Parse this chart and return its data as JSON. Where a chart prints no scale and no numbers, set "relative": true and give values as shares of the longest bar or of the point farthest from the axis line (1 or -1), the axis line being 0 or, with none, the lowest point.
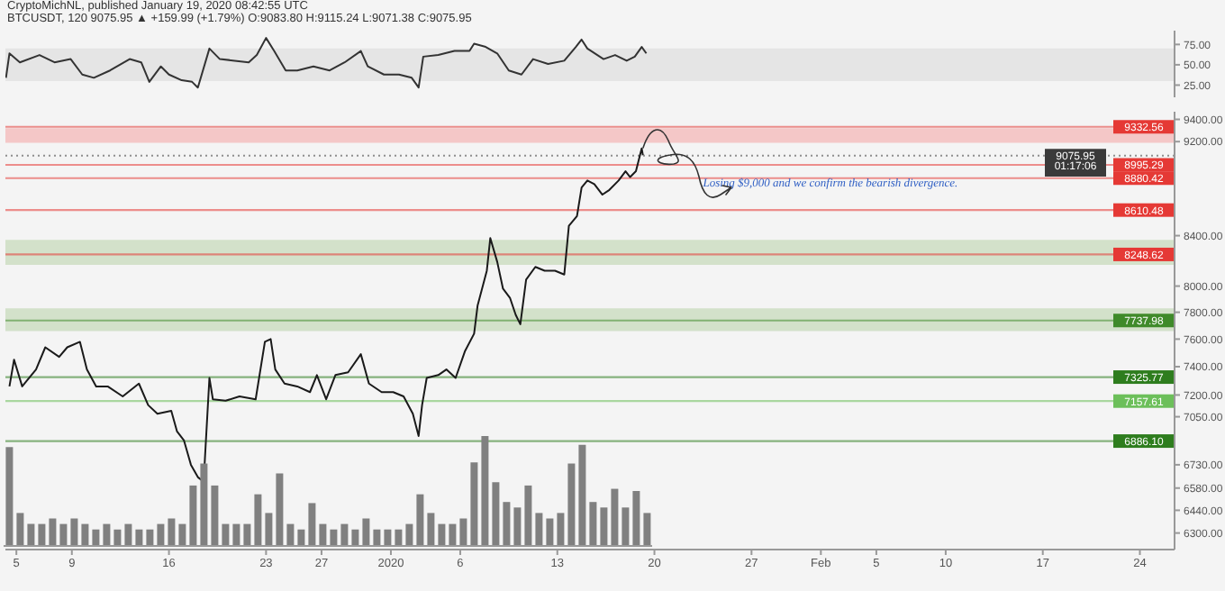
{
  "chart_data": [
    {
      "type": "line",
      "title": "CryptoMichNL, published January 19, 2020 08:42:55 UTC",
      "subtitle": "BTCUSDT, 120 9075.95 ▲ +159.99 (+1.79%) O:9083.80 H:9115.24 L:9071.38 C:9075.95",
      "tick_labels": "y",
      "xlim": [
        "2019-12-04T05:00",
        "2020-02-26T12:00"
      ],
      "ylim": [
        10,
        92
      ],
      "yticks": [
        {
          "value": 25,
          "label": "25.00"
        },
        {
          "value": 50,
          "label": "50.00"
        },
        {
          "value": 75,
          "label": "75.00"
        }
      ],
      "bands": [
        {
          "axis": "y",
          "from": 30,
          "to": 70,
          "color": "#dedede"
        }
      ],
      "series": [
        {
          "color": "#333333",
          "x": [
            "2019-12-04T06:00",
            "2019-12-04T12:00",
            "2019-12-05T06:00",
            "2019-12-06T16:00",
            "2019-12-07T18:00",
            "2019-12-08T22:00",
            "2019-12-09T18:00",
            "2019-12-10T14:00",
            "2019-12-11T18:00",
            "2019-12-13T04:00",
            "2019-12-14T00:00",
            "2019-12-14T14:00",
            "2019-12-15T10:00",
            "2019-12-16T00:00",
            "2019-12-16T22:00",
            "2019-12-17T16:00",
            "2019-12-18T02:00",
            "2019-12-18T22:00",
            "2019-12-19T16:00",
            "2019-12-20T18:00",
            "2019-12-21T18:00",
            "2019-12-22T08:00",
            "2019-12-23T00:00",
            "2019-12-23T14:00",
            "2019-12-24T10:00",
            "2019-12-25T06:00",
            "2019-12-26T10:00",
            "2019-12-27T14:00",
            "2019-12-28T16:00",
            "2019-12-29T20:00",
            "2019-12-30T08:00",
            "2019-12-31T12:00",
            "2020-01-01T14:00",
            "2020-01-02T12:00",
            "2020-01-03T00:00",
            "2020-01-03T08:00",
            "2020-01-04T10:00",
            "2020-01-05T14:00",
            "2020-01-06T16:00",
            "2020-01-07T00:00",
            "2020-01-07T20:00",
            "2020-01-08T16:00",
            "2020-01-09T12:00",
            "2020-01-10T10:00",
            "2020-01-11T06:00",
            "2020-01-12T08:00",
            "2020-01-13T12:00",
            "2020-01-14T08:00",
            "2020-01-14T18:00",
            "2020-01-15T04:00",
            "2020-01-16T08:00",
            "2020-01-17T04:00",
            "2020-01-18T00:00",
            "2020-01-18T14:00",
            "2020-01-19T02:00",
            "2020-01-19T10:00"
          ],
          "values": [
            34,
            64,
            53,
            62,
            53,
            57,
            38,
            34,
            43,
            57,
            53,
            29,
            48,
            38,
            31,
            29,
            22,
            70,
            57,
            55,
            53,
            62,
            83,
            67,
            43,
            43,
            48,
            43,
            53,
            67,
            48,
            38,
            38,
            34,
            22,
            60,
            62,
            67,
            67,
            76,
            72,
            64,
            43,
            38,
            57,
            51,
            55,
            72,
            81,
            70,
            57,
            62,
            55,
            60,
            72,
            64
          ]
        }
      ]
    },
    {
      "type": "line",
      "xlim": [
        "2019-12-04T05:00",
        "2020-02-26T12:00"
      ],
      "xticks": [
        {
          "value": "2019-12-05",
          "label": "5"
        },
        {
          "value": "2019-12-09",
          "label": "9"
        },
        {
          "value": "2019-12-16",
          "label": "16"
        },
        {
          "value": "2019-12-23",
          "label": "23"
        },
        {
          "value": "2019-12-27",
          "label": "27"
        },
        {
          "value": "2020-01-01",
          "label": "2020"
        },
        {
          "value": "2020-01-06",
          "label": "6"
        },
        {
          "value": "2020-01-13",
          "label": "13"
        },
        {
          "value": "2020-01-20",
          "label": "20"
        },
        {
          "value": "2020-01-27",
          "label": "27"
        },
        {
          "value": "2020-02-01",
          "label": "Feb"
        },
        {
          "value": "2020-02-05",
          "label": "5"
        },
        {
          "value": "2020-02-10",
          "label": "10"
        },
        {
          "value": "2020-02-17",
          "label": "17"
        },
        {
          "value": "2020-02-24",
          "label": "24"
        }
      ],
      "log": "y",
      "ylim": [
        6200,
        9470
      ],
      "yticks": [
        {
          "value": 9400,
          "label": "9400.00"
        },
        {
          "value": 9200,
          "label": "9200.00"
        },
        {
          "value": 8400,
          "label": "8400.00"
        },
        {
          "value": 8000,
          "label": "8000.00"
        },
        {
          "value": 7800,
          "label": "7800.00"
        },
        {
          "value": 7600,
          "label": "7600.00"
        },
        {
          "value": 7400,
          "label": "7400.00"
        },
        {
          "value": 7200,
          "label": "7200.00"
        },
        {
          "value": 7050,
          "label": "7050.00"
        },
        {
          "value": 6730,
          "label": "6730.00"
        },
        {
          "value": 6580,
          "label": "6580.00"
        },
        {
          "value": 6440,
          "label": "6440.00"
        },
        {
          "value": 6300,
          "label": "6300.00"
        }
      ],
      "ref_lines": [
        {
          "axis": "y",
          "value": 9332.56,
          "label": "9332.56",
          "color": "#e53935"
        },
        {
          "axis": "y",
          "value": 9075.95,
          "label": "9075.95",
          "color": "#3a3a3a",
          "line_style": "dotted"
        },
        {
          "axis": "y",
          "value": 8995.29,
          "label": "8995.29",
          "color": "#e53935"
        },
        {
          "axis": "y",
          "value": 8880.42,
          "label": "8880.42",
          "color": "#e53935"
        },
        {
          "axis": "y",
          "value": 8610.48,
          "label": "8610.48",
          "color": "#e53935"
        },
        {
          "axis": "y",
          "value": 8248.62,
          "label": "8248.62",
          "color": "#e53935"
        },
        {
          "axis": "y",
          "value": 7737.98,
          "label": "7737.98",
          "color": "#3f8a2a"
        },
        {
          "axis": "y",
          "value": 7325.77,
          "label": "7325.77",
          "color": "#2e7d1e"
        },
        {
          "axis": "y",
          "value": 7157.61,
          "label": "7157.61",
          "color": "#6cbf5a"
        },
        {
          "axis": "y",
          "value": 6886.1,
          "label": "6886.10",
          "color": "#2e7d1e"
        }
      ],
      "annotations": [
        {
          "text": "Losing $9,000 and we confirm the bearish divergence.",
          "x": "2020-01-23T12:00",
          "y": 8840
        },
        "01:17:06"
      ],
      "bands": [
        {
          "axis": "y",
          "from": 9190,
          "to": 9320,
          "color": "#f4b4b4"
        },
        {
          "axis": "y",
          "from": 8165,
          "to": 8365,
          "color": "#c5d9b8"
        },
        {
          "axis": "y",
          "from": 7660,
          "to": 7830,
          "color": "#c5d9b8"
        }
      ],
      "series": [
        {
          "color": "#1a1a1a",
          "x": [
            "2019-12-04T12:00",
            "2019-12-04T20:00",
            "2019-12-05T10:00",
            "2019-12-06T10:00",
            "2019-12-07T02:00",
            "2019-12-08T02:00",
            "2019-12-08T16:00",
            "2019-12-09T14:00",
            "2019-12-10T02:00",
            "2019-12-10T18:00",
            "2019-12-11T14:00",
            "2019-12-12T16:00",
            "2019-12-13T20:00",
            "2019-12-14T12:00",
            "2019-12-15T04:00",
            "2019-12-16T04:00",
            "2019-12-16T14:00",
            "2019-12-17T02:00",
            "2019-12-17T14:00",
            "2019-12-18T02:00",
            "2019-12-18T12:00",
            "2019-12-18T22:00",
            "2019-12-19T04:00",
            "2019-12-20T02:00",
            "2019-12-21T02:00",
            "2019-12-22T06:00",
            "2019-12-22T22:00",
            "2019-12-23T08:00",
            "2019-12-23T16:00",
            "2019-12-24T08:00",
            "2019-12-25T06:00",
            "2019-12-26T04:00",
            "2019-12-26T16:00",
            "2019-12-27T08:00",
            "2019-12-28T00:00",
            "2019-12-28T22:00",
            "2019-12-29T20:00",
            "2019-12-30T10:00",
            "2019-12-31T08:00",
            "2020-01-01T04:00",
            "2020-01-01T22:00",
            "2020-01-02T14:00",
            "2020-01-03T00:00",
            "2020-01-03T06:00",
            "2020-01-03T14:00",
            "2020-01-04T10:00",
            "2020-01-05T00:00",
            "2020-01-05T16:00",
            "2020-01-06T08:00",
            "2020-01-07T00:00",
            "2020-01-07T06:00",
            "2020-01-07T22:00",
            "2020-01-08T04:00",
            "2020-01-08T16:00",
            "2020-01-09T02:00",
            "2020-01-09T14:00",
            "2020-01-10T00:00",
            "2020-01-10T08:00",
            "2020-01-10T18:00",
            "2020-01-11T10:00",
            "2020-01-12T02:00",
            "2020-01-12T20:00",
            "2020-01-13T12:00",
            "2020-01-13T20:00",
            "2020-01-14T10:00",
            "2020-01-14T18:00",
            "2020-01-15T04:00",
            "2020-01-15T16:00",
            "2020-01-16T06:00",
            "2020-01-16T18:00",
            "2020-01-17T10:00",
            "2020-01-17T22:00",
            "2020-01-18T06:00",
            "2020-01-18T16:00",
            "2020-01-19T02:00",
            "2020-01-19T04:00"
          ],
          "values": [
            7260,
            7450,
            7260,
            7380,
            7540,
            7470,
            7540,
            7580,
            7380,
            7260,
            7260,
            7190,
            7280,
            7130,
            7070,
            7090,
            6950,
            6890,
            6730,
            6650,
            6620,
            7320,
            7170,
            7160,
            7190,
            7170,
            7580,
            7600,
            7380,
            7280,
            7260,
            7220,
            7340,
            7170,
            7340,
            7360,
            7490,
            7280,
            7220,
            7220,
            7190,
            7070,
            6920,
            7130,
            7320,
            7340,
            7380,
            7320,
            7510,
            7640,
            7850,
            8120,
            8380,
            8190,
            7980,
            7910,
            7780,
            7710,
            8050,
            8150,
            8120,
            8120,
            8090,
            8480,
            8560,
            8800,
            8860,
            8830,
            8740,
            8780,
            8860,
            8940,
            8890,
            8940,
            9140,
            9080
          ]
        }
      ]
    },
    {
      "type": "bar",
      "relative": true,
      "tick_labels": false,
      "color": "#808080",
      "categories": [
        null,
        null,
        null,
        null,
        null,
        null,
        null,
        null,
        null,
        null,
        null,
        null,
        null,
        null,
        null,
        null,
        null,
        null,
        null,
        null,
        null,
        null,
        null,
        null,
        null,
        null,
        null,
        null,
        null,
        null,
        null,
        null,
        null,
        null,
        null,
        null,
        null,
        null,
        null,
        null,
        null,
        null,
        null,
        null,
        null,
        null,
        null,
        null,
        null,
        null,
        null,
        null,
        null,
        null,
        null,
        null,
        null,
        null,
        null,
        null
      ],
      "values": [
        0.9,
        0.3,
        0.2,
        0.2,
        0.25,
        0.2,
        0.25,
        0.2,
        0.15,
        0.2,
        0.15,
        0.2,
        0.15,
        0.15,
        0.2,
        0.25,
        0.2,
        0.55,
        0.75,
        0.55,
        0.2,
        0.2,
        0.2,
        0.47,
        0.3,
        0.66,
        0.2,
        0.15,
        0.39,
        0.2,
        0.15,
        0.2,
        0.15,
        0.25,
        0.15,
        0.15,
        0.15,
        0.2,
        0.47,
        0.3,
        0.2,
        0.2,
        0.25,
        0.76,
        1,
        0.58,
        0.4,
        0.35,
        0.55,
        0.3,
        0.25,
        0.3,
        0.75,
        0.92,
        0.4,
        0.35,
        0.52,
        0.35,
        0.5,
        0.3
      ]
    }
  ]
}
